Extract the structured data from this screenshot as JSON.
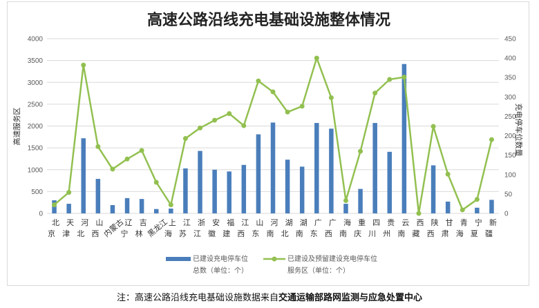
{
  "footnote": {
    "prefix": "注：高速公路沿线充电基础设施数据来自",
    "source": "交通运输部路网监测与应急处置中心"
  },
  "colors": {
    "bar": "#4a7ebb",
    "line": "#92c050",
    "grid": "#d9d9d9"
  },
  "chart_data": {
    "type": "bar",
    "title": "高速公路沿线充电基础设施整体情况",
    "ylabel": "高速服务区",
    "y2label": "充电停车位数量",
    "ylim": [
      0,
      4000
    ],
    "y2lim": [
      0,
      450
    ],
    "yticks": [
      "0",
      "500",
      "1000",
      "1500",
      "2000",
      "2500",
      "3000",
      "3500",
      "4000"
    ],
    "y2ticks": [
      "0",
      "50",
      "100",
      "150",
      "200",
      "250",
      "300",
      "350",
      "400",
      "450"
    ],
    "grid": true,
    "legend_position": "bottom",
    "categories": [
      [
        "北",
        "京"
      ],
      [
        "天",
        "津"
      ],
      [
        "河",
        "北"
      ],
      [
        "山",
        "西"
      ],
      [
        "内蒙古"
      ],
      [
        "辽",
        "宁"
      ],
      [
        "吉",
        "林"
      ],
      [
        "黑龙江"
      ],
      [
        "上",
        "海"
      ],
      [
        "江",
        "苏"
      ],
      [
        "浙",
        "江"
      ],
      [
        "安",
        "徽"
      ],
      [
        "福",
        "建"
      ],
      [
        "江",
        "西"
      ],
      [
        "山",
        "东"
      ],
      [
        "河",
        "南"
      ],
      [
        "湖",
        "北"
      ],
      [
        "湖",
        "南"
      ],
      [
        "广",
        "东"
      ],
      [
        "广",
        "西"
      ],
      [
        "海",
        "南"
      ],
      [
        "重",
        "庆"
      ],
      [
        "四",
        "川"
      ],
      [
        "贵",
        "州"
      ],
      [
        "云",
        "南"
      ],
      [
        "西",
        "藏"
      ],
      [
        "陕",
        "西"
      ],
      [
        "甘",
        "肃"
      ],
      [
        "青",
        "海"
      ],
      [
        "宁",
        "夏"
      ],
      [
        "新",
        "疆"
      ]
    ],
    "series": [
      {
        "name": "已建设充电停车位",
        "name2": "总数（单位：个）",
        "type": "bar",
        "axis": "left",
        "values": [
          300,
          220,
          1720,
          790,
          190,
          350,
          330,
          100,
          110,
          1030,
          1430,
          1000,
          960,
          1110,
          1810,
          2080,
          1230,
          1070,
          2070,
          1940,
          220,
          560,
          2070,
          1410,
          3420,
          0,
          1100,
          270,
          0,
          130,
          310
        ]
      },
      {
        "name": "已建设及预留建设充电停车位",
        "name2": "服务区（单位：个）",
        "type": "line",
        "axis": "right",
        "values": [
          22,
          54,
          382,
          172,
          114,
          140,
          162,
          80,
          22,
          193,
          220,
          240,
          257,
          226,
          341,
          313,
          261,
          276,
          400,
          298,
          33,
          160,
          310,
          345,
          351,
          0,
          224,
          101,
          9,
          36,
          190
        ]
      }
    ]
  }
}
